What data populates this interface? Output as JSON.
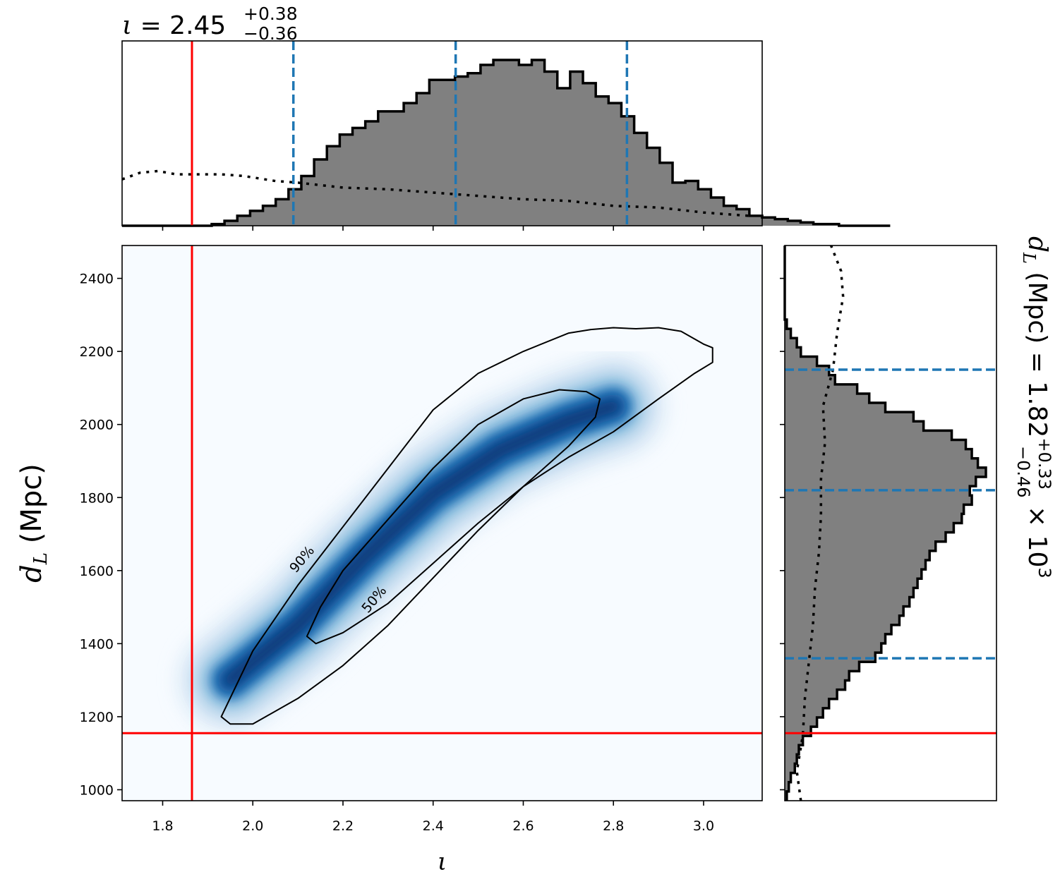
{
  "chart_data": [
    {
      "type": "heatmap",
      "name": "joint-posterior",
      "xlabel": "ι",
      "ylabel_symbol": "d",
      "ylabel_subscript": "L",
      "ylabel_unit": "(Mpc)",
      "xlim": [
        1.71,
        3.13
      ],
      "ylim": [
        970,
        2490
      ],
      "x_ticks": [
        1.8,
        2.0,
        2.2,
        2.4,
        2.6,
        2.8,
        3.0
      ],
      "x_tick_labels": [
        "1.8",
        "2.0",
        "2.2",
        "2.4",
        "2.6",
        "2.8",
        "3.0"
      ],
      "y_ticks": [
        1000,
        1200,
        1400,
        1600,
        1800,
        2000,
        2200,
        2400
      ],
      "y_tick_labels": [
        "1000",
        "1200",
        "1400",
        "1600",
        "1800",
        "2000",
        "2200",
        "2400"
      ],
      "colormap": [
        "#f7fbff",
        "#deebf7",
        "#c6dbef",
        "#9ecae1",
        "#6baed6",
        "#4292c6",
        "#2171b5",
        "#08519c",
        "#08306b"
      ],
      "density_ridge": {
        "x": [
          1.95,
          2.1,
          2.25,
          2.4,
          2.55,
          2.7,
          2.8
        ],
        "y": [
          1300,
          1450,
          1640,
          1810,
          1930,
          2010,
          2050
        ]
      },
      "contours": [
        {
          "label": "50%",
          "x": [
            2.12,
            2.14,
            2.2,
            2.3,
            2.4,
            2.5,
            2.6,
            2.7,
            2.76,
            2.77,
            2.74,
            2.68,
            2.6,
            2.5,
            2.4,
            2.3,
            2.2,
            2.15,
            2.12
          ],
          "y": [
            1420,
            1400,
            1430,
            1510,
            1620,
            1730,
            1830,
            1940,
            2020,
            2070,
            2090,
            2095,
            2070,
            2000,
            1880,
            1740,
            1600,
            1500,
            1420
          ]
        },
        {
          "label": "90%",
          "x": [
            1.93,
            1.95,
            2.0,
            2.1,
            2.2,
            2.3,
            2.4,
            2.5,
            2.6,
            2.7,
            2.8,
            2.9,
            2.98,
            3.02,
            3.02,
            3.0,
            2.95,
            2.9,
            2.85,
            2.8,
            2.75,
            2.7,
            2.6,
            2.5,
            2.4,
            2.3,
            2.2,
            2.1,
            2.0,
            1.93
          ],
          "y": [
            1200,
            1180,
            1180,
            1250,
            1340,
            1450,
            1580,
            1710,
            1830,
            1910,
            1980,
            2070,
            2140,
            2170,
            2210,
            2220,
            2255,
            2265,
            2262,
            2265,
            2260,
            2250,
            2200,
            2140,
            2040,
            1880,
            1720,
            1560,
            1380,
            1200
          ]
        }
      ],
      "contour_labels": [
        {
          "text": "90%",
          "x": 2.11,
          "y": 1630
        },
        {
          "text": "50%",
          "x": 2.27,
          "y": 1520
        }
      ],
      "truth": {
        "x": 1.865,
        "y": 1155,
        "color": "#ff0000"
      }
    },
    {
      "type": "bar",
      "name": "iota-marginal",
      "title_prefix": "ι = 2.45",
      "title_sup": "+0.38",
      "title_sub": "−0.36",
      "xlim": [
        1.71,
        3.13
      ],
      "x_ticks": [
        1.8,
        2.0,
        2.2,
        2.4,
        2.6,
        2.8,
        3.0
      ],
      "bin_edges_start": 1.71,
      "bin_width": 0.0284,
      "values": [
        0,
        0,
        0,
        0,
        0,
        0,
        0,
        0.01,
        0.03,
        0.06,
        0.09,
        0.12,
        0.16,
        0.22,
        0.3,
        0.4,
        0.48,
        0.55,
        0.59,
        0.63,
        0.69,
        0.69,
        0.74,
        0.8,
        0.88,
        0.88,
        0.9,
        0.92,
        0.97,
        1.0,
        1.0,
        0.97,
        1.0,
        0.93,
        0.83,
        0.93,
        0.86,
        0.78,
        0.74,
        0.66,
        0.56,
        0.47,
        0.38,
        0.26,
        0.27,
        0.22,
        0.17,
        0.12,
        0.1,
        0.06,
        0.05,
        0.04,
        0.03,
        0.02,
        0.01,
        0.01,
        0.0,
        0.0,
        0.0,
        0.0
      ],
      "values_scale": 235,
      "prior_x": [
        1.71,
        1.75,
        1.79,
        1.83,
        1.88,
        1.93,
        1.98,
        2.05,
        2.1,
        2.2,
        2.3,
        2.4,
        2.5,
        2.6,
        2.7,
        2.8,
        2.9,
        3.0,
        3.1
      ],
      "prior_y": [
        0.28,
        0.32,
        0.33,
        0.31,
        0.31,
        0.31,
        0.3,
        0.27,
        0.26,
        0.23,
        0.22,
        0.2,
        0.18,
        0.16,
        0.15,
        0.12,
        0.11,
        0.08,
        0.06
      ],
      "quantiles": [
        2.09,
        2.45,
        2.83
      ],
      "quantile_color": "#1f77b4",
      "fill_color": "#808080",
      "truth_x": 1.865,
      "truth_color": "#ff0000"
    },
    {
      "type": "bar",
      "name": "dL-marginal",
      "title_prefix": "d",
      "title_subscript": "L",
      "title_unit": " (Mpc) = 1.82",
      "title_sup": "+0.33",
      "title_sub": "−0.46",
      "title_suffix": " × 10",
      "title_exp": "3",
      "ylim": [
        970,
        2490
      ],
      "y_ticks": [
        1000,
        1200,
        1400,
        1600,
        1800,
        2000,
        2200,
        2400
      ],
      "bin_edges_start": 970,
      "bin_width": 25.33,
      "values": [
        0.01,
        0.02,
        0.03,
        0.05,
        0.06,
        0.07,
        0.09,
        0.13,
        0.16,
        0.19,
        0.22,
        0.26,
        0.3,
        0.32,
        0.37,
        0.45,
        0.48,
        0.5,
        0.53,
        0.57,
        0.59,
        0.62,
        0.64,
        0.66,
        0.68,
        0.7,
        0.72,
        0.75,
        0.8,
        0.84,
        0.88,
        0.89,
        0.93,
        0.92,
        0.95,
        1.0,
        0.96,
        0.93,
        0.9,
        0.83,
        0.69,
        0.64,
        0.5,
        0.42,
        0.36,
        0.25,
        0.22,
        0.16,
        0.08,
        0.06,
        0.03,
        0.01,
        0,
        0,
        0,
        0,
        0,
        0,
        0,
        0
      ],
      "values_scale": 285,
      "prior_y": [
        970,
        1050,
        1150,
        1250,
        1350,
        1450,
        1550,
        1650,
        1750,
        1850,
        1950,
        2050,
        2150,
        2250,
        2350,
        2420,
        2490
      ],
      "prior_x": [
        0.08,
        0.06,
        0.09,
        0.1,
        0.12,
        0.14,
        0.15,
        0.17,
        0.18,
        0.18,
        0.2,
        0.19,
        0.24,
        0.26,
        0.29,
        0.28,
        0.23
      ],
      "quantiles": [
        1360,
        1820,
        2150
      ],
      "quantile_color": "#1f77b4",
      "fill_color": "#808080",
      "truth_y": 1155,
      "truth_color": "#ff0000"
    }
  ]
}
